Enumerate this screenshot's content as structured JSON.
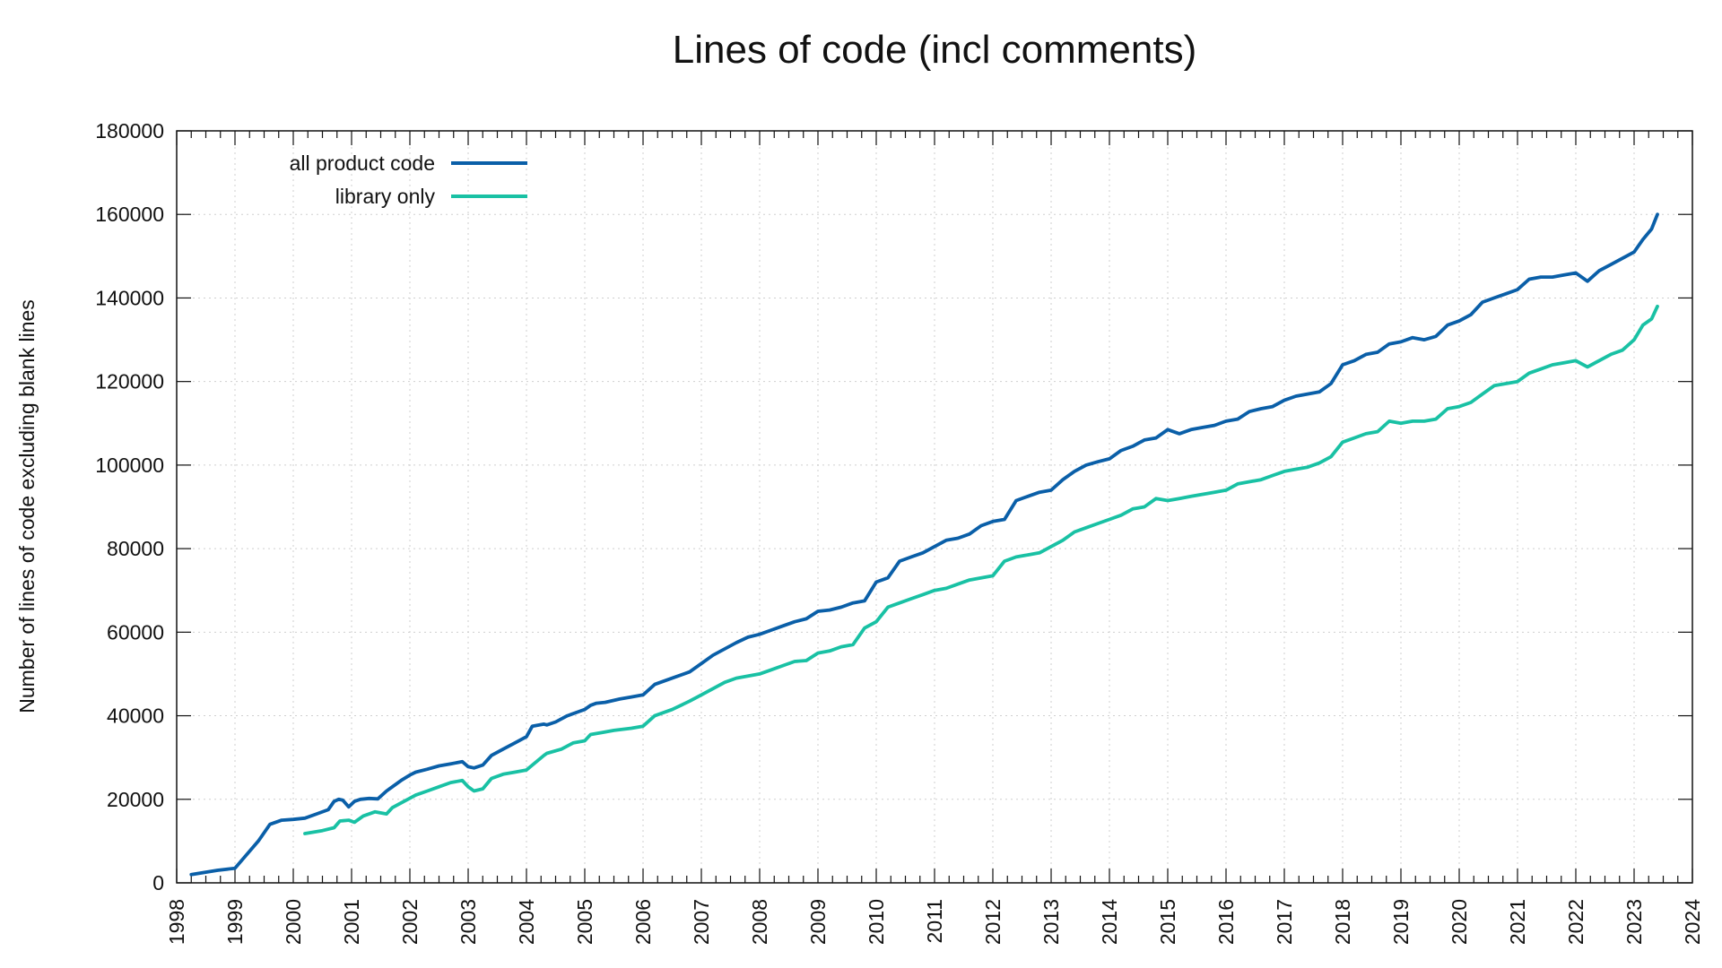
{
  "chart_data": {
    "type": "line",
    "title": "Lines of code (incl comments)",
    "xlabel": "",
    "ylabel": "Number of lines of code excluding blank lines",
    "xlim": [
      1998,
      2024
    ],
    "ylim": [
      0,
      180000
    ],
    "x_ticks": [
      "1998",
      "1999",
      "2000",
      "2001",
      "2002",
      "2003",
      "2004",
      "2005",
      "2006",
      "2007",
      "2008",
      "2009",
      "2010",
      "2011",
      "2012",
      "2013",
      "2014",
      "2015",
      "2016",
      "2017",
      "2018",
      "2019",
      "2020",
      "2021",
      "2022",
      "2023",
      "2024"
    ],
    "y_ticks": [
      "0",
      "20000",
      "40000",
      "60000",
      "80000",
      "100000",
      "120000",
      "140000",
      "160000",
      "180000"
    ],
    "grid": true,
    "legend": "top-left",
    "series": [
      {
        "name": "all product code",
        "color": "#0a5fa8",
        "x": [
          1998.25,
          1998.7,
          1999.0,
          1999.4,
          1999.6,
          1999.8,
          2000.0,
          2000.2,
          2000.4,
          2000.6,
          2000.7,
          2000.78,
          2000.85,
          2000.95,
          2001.05,
          2001.15,
          2001.3,
          2001.45,
          2001.6,
          2001.7,
          2001.85,
          2002.0,
          2002.1,
          2002.3,
          2002.5,
          2002.7,
          2002.9,
          2003.0,
          2003.1,
          2003.25,
          2003.4,
          2003.6,
          2003.8,
          2004.0,
          2004.1,
          2004.3,
          2004.35,
          2004.5,
          2004.7,
          2004.9,
          2005.0,
          2005.1,
          2005.2,
          2005.35,
          2005.6,
          2005.8,
          2006.0,
          2006.2,
          2006.5,
          2006.8,
          2007.0,
          2007.2,
          2007.4,
          2007.6,
          2007.8,
          2008.0,
          2008.2,
          2008.4,
          2008.6,
          2008.8,
          2009.0,
          2009.2,
          2009.4,
          2009.6,
          2009.8,
          2010.0,
          2010.2,
          2010.4,
          2010.6,
          2010.8,
          2011.0,
          2011.2,
          2011.4,
          2011.6,
          2011.8,
          2012.0,
          2012.2,
          2012.4,
          2012.6,
          2012.8,
          2013.0,
          2013.2,
          2013.4,
          2013.6,
          2013.8,
          2014.0,
          2014.2,
          2014.4,
          2014.6,
          2014.8,
          2015.0,
          2015.2,
          2015.4,
          2015.6,
          2015.8,
          2016.0,
          2016.2,
          2016.4,
          2016.6,
          2016.8,
          2017.0,
          2017.2,
          2017.4,
          2017.6,
          2017.8,
          2018.0,
          2018.2,
          2018.4,
          2018.6,
          2018.8,
          2019.0,
          2019.2,
          2019.4,
          2019.6,
          2019.8,
          2020.0,
          2020.2,
          2020.4,
          2020.6,
          2020.8,
          2021.0,
          2021.2,
          2021.4,
          2021.6,
          2021.8,
          2022.0,
          2022.2,
          2022.4,
          2022.6,
          2022.8,
          2023.0,
          2023.15,
          2023.3,
          2023.4
        ],
        "values": [
          2000,
          3000,
          3500,
          10000,
          14000,
          15000,
          15200,
          15500,
          16500,
          17500,
          19500,
          20000,
          19800,
          18200,
          19500,
          20000,
          20200,
          20100,
          22000,
          23000,
          24500,
          25800,
          26500,
          27200,
          28000,
          28500,
          29000,
          27800,
          27500,
          28200,
          30500,
          32000,
          33500,
          35000,
          37500,
          38000,
          37800,
          38500,
          40000,
          41000,
          41500,
          42500,
          43000,
          43200,
          44000,
          44500,
          45000,
          47500,
          49000,
          50500,
          52500,
          54500,
          56000,
          57500,
          58800,
          59500,
          60500,
          61500,
          62500,
          63200,
          65000,
          65300,
          66000,
          67000,
          67500,
          72000,
          73000,
          77000,
          78000,
          79000,
          80500,
          82000,
          82500,
          83500,
          85500,
          86500,
          87000,
          91500,
          92500,
          93500,
          94000,
          96500,
          98500,
          100000,
          100800,
          101500,
          103500,
          104500,
          106000,
          106500,
          108500,
          107500,
          108500,
          109000,
          109500,
          110500,
          111000,
          112800,
          113500,
          114000,
          115500,
          116500,
          117000,
          117500,
          119500,
          124000,
          125000,
          126500,
          127000,
          129000,
          129500,
          130500,
          130000,
          130800,
          133500,
          134500,
          136000,
          139000,
          140000,
          141000,
          142000,
          144500,
          145000,
          145000,
          145500,
          146000,
          144000,
          146500,
          148000,
          149500,
          151000,
          154000,
          156500,
          160000
        ]
      },
      {
        "name": "library only",
        "color": "#19c1a4",
        "x": [
          2000.2,
          2000.5,
          2000.7,
          2000.8,
          2000.95,
          2001.05,
          2001.2,
          2001.4,
          2001.6,
          2001.7,
          2001.9,
          2002.1,
          2002.3,
          2002.5,
          2002.7,
          2002.9,
          2003.0,
          2003.1,
          2003.25,
          2003.4,
          2003.6,
          2003.8,
          2004.0,
          2004.3,
          2004.35,
          2004.6,
          2004.8,
          2005.0,
          2005.1,
          2005.3,
          2005.5,
          2005.8,
          2006.0,
          2006.2,
          2006.5,
          2006.8,
          2007.0,
          2007.2,
          2007.4,
          2007.6,
          2007.8,
          2008.0,
          2008.2,
          2008.4,
          2008.6,
          2008.8,
          2009.0,
          2009.2,
          2009.4,
          2009.6,
          2009.8,
          2010.0,
          2010.2,
          2010.4,
          2010.6,
          2010.8,
          2011.0,
          2011.2,
          2011.4,
          2011.6,
          2011.8,
          2012.0,
          2012.2,
          2012.4,
          2012.6,
          2012.8,
          2013.0,
          2013.2,
          2013.4,
          2013.6,
          2013.8,
          2014.0,
          2014.2,
          2014.4,
          2014.6,
          2014.8,
          2015.0,
          2015.2,
          2015.4,
          2015.6,
          2015.8,
          2016.0,
          2016.2,
          2016.4,
          2016.6,
          2016.8,
          2017.0,
          2017.2,
          2017.4,
          2017.6,
          2017.8,
          2018.0,
          2018.2,
          2018.4,
          2018.6,
          2018.8,
          2019.0,
          2019.2,
          2019.4,
          2019.6,
          2019.8,
          2020.0,
          2020.2,
          2020.4,
          2020.6,
          2020.8,
          2021.0,
          2021.2,
          2021.4,
          2021.6,
          2021.8,
          2022.0,
          2022.2,
          2022.4,
          2022.6,
          2022.8,
          2023.0,
          2023.15,
          2023.3,
          2023.4
        ],
        "values": [
          11800,
          12500,
          13200,
          14800,
          15000,
          14500,
          16000,
          17000,
          16500,
          18000,
          19500,
          21000,
          22000,
          23000,
          24000,
          24500,
          23000,
          22000,
          22500,
          25000,
          26000,
          26500,
          27000,
          30500,
          31000,
          32000,
          33500,
          34000,
          35500,
          36000,
          36500,
          37000,
          37500,
          40000,
          41500,
          43500,
          45000,
          46500,
          48000,
          49000,
          49500,
          50000,
          51000,
          52000,
          53000,
          53200,
          55000,
          55500,
          56500,
          57000,
          61000,
          62500,
          66000,
          67000,
          68000,
          69000,
          70000,
          70500,
          71500,
          72500,
          73000,
          73500,
          77000,
          78000,
          78500,
          79000,
          80500,
          82000,
          84000,
          85000,
          86000,
          87000,
          88000,
          89500,
          90000,
          92000,
          91500,
          92000,
          92500,
          93000,
          93500,
          94000,
          95500,
          96000,
          96500,
          97500,
          98500,
          99000,
          99500,
          100500,
          102000,
          105500,
          106500,
          107500,
          108000,
          110500,
          110000,
          110500,
          110500,
          111000,
          113500,
          114000,
          115000,
          117000,
          119000,
          119500,
          120000,
          122000,
          123000,
          124000,
          124500,
          125000,
          123500,
          125000,
          126500,
          127500,
          130000,
          133500,
          135000,
          138000
        ]
      }
    ]
  }
}
